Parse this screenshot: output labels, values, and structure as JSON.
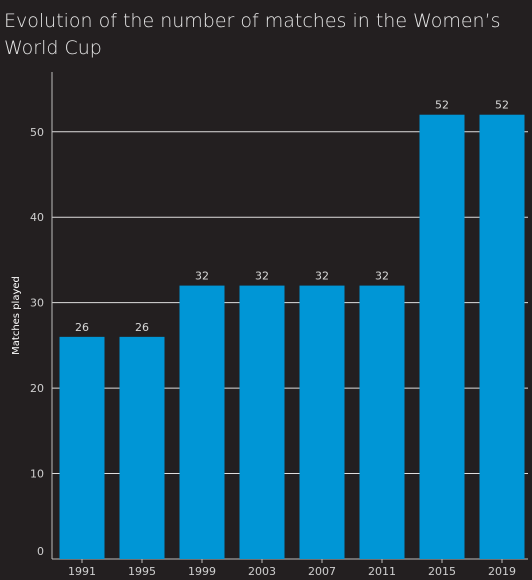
{
  "chart_data": {
    "type": "bar",
    "title": "Evolution of the number of matches in the Women’s World Cup",
    "xlabel": "",
    "ylabel": "Matches played",
    "categories": [
      "1991",
      "1995",
      "1999",
      "2003",
      "2007",
      "2011",
      "2015",
      "2019"
    ],
    "values": [
      26,
      26,
      32,
      32,
      32,
      32,
      52,
      52
    ],
    "ylim": [
      0,
      57
    ],
    "yticks": [
      0,
      10,
      20,
      30,
      40,
      50
    ],
    "grid": true,
    "legend": "none",
    "colors": {
      "bar": "#0096d6",
      "background": "#231f20",
      "grid": "#ffffff"
    }
  }
}
